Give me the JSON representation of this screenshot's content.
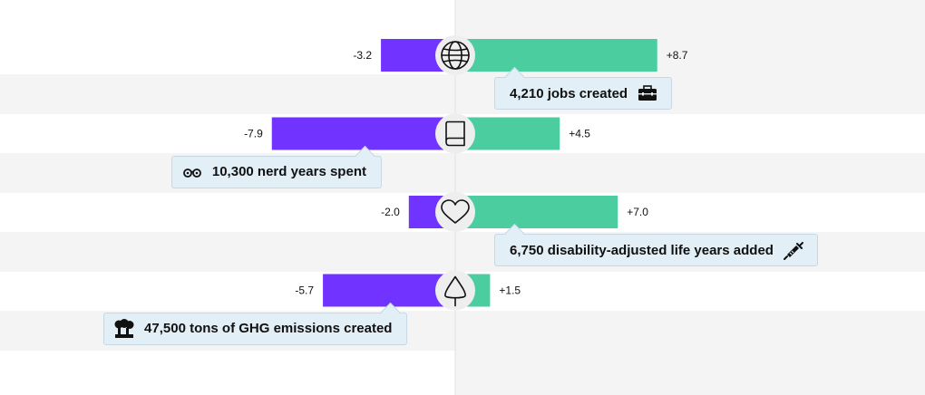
{
  "chart_data": {
    "type": "bar",
    "orientation": "horizontal-diverging",
    "grid": false,
    "colors": {
      "negative": "#7133ff",
      "positive": "#4ccd9f",
      "band": "#f4f4f4",
      "callout_bg": "#e3eff7"
    },
    "rows": [
      {
        "icon": "globe-icon",
        "negative": -3.2,
        "negative_label": "-3.2",
        "positive": 8.7,
        "positive_label": "+8.7",
        "callout": {
          "text": "4,210 jobs created",
          "icon": "briefcase-icon",
          "icon_side": "right",
          "side": "positive"
        }
      },
      {
        "icon": "book-icon",
        "negative": -7.9,
        "negative_label": "-7.9",
        "positive": 4.5,
        "positive_label": "+4.5",
        "callout": {
          "text": "10,300 nerd years spent",
          "icon": "glasses-icon",
          "icon_side": "left",
          "side": "negative"
        }
      },
      {
        "icon": "heart-icon",
        "negative": -2.0,
        "negative_label": "-2.0",
        "positive": 7.0,
        "positive_label": "+7.0",
        "callout": {
          "text": "6,750 disability-adjusted life years added",
          "icon": "syringe-icon",
          "icon_side": "right",
          "side": "positive"
        }
      },
      {
        "icon": "tree-icon",
        "negative": -5.7,
        "negative_label": "-5.7",
        "positive": 1.5,
        "positive_label": "+1.5",
        "callout": {
          "text": "47,500 tons of GHG emissions created",
          "icon": "factory-smoke-icon",
          "icon_side": "left",
          "side": "negative"
        }
      }
    ]
  }
}
